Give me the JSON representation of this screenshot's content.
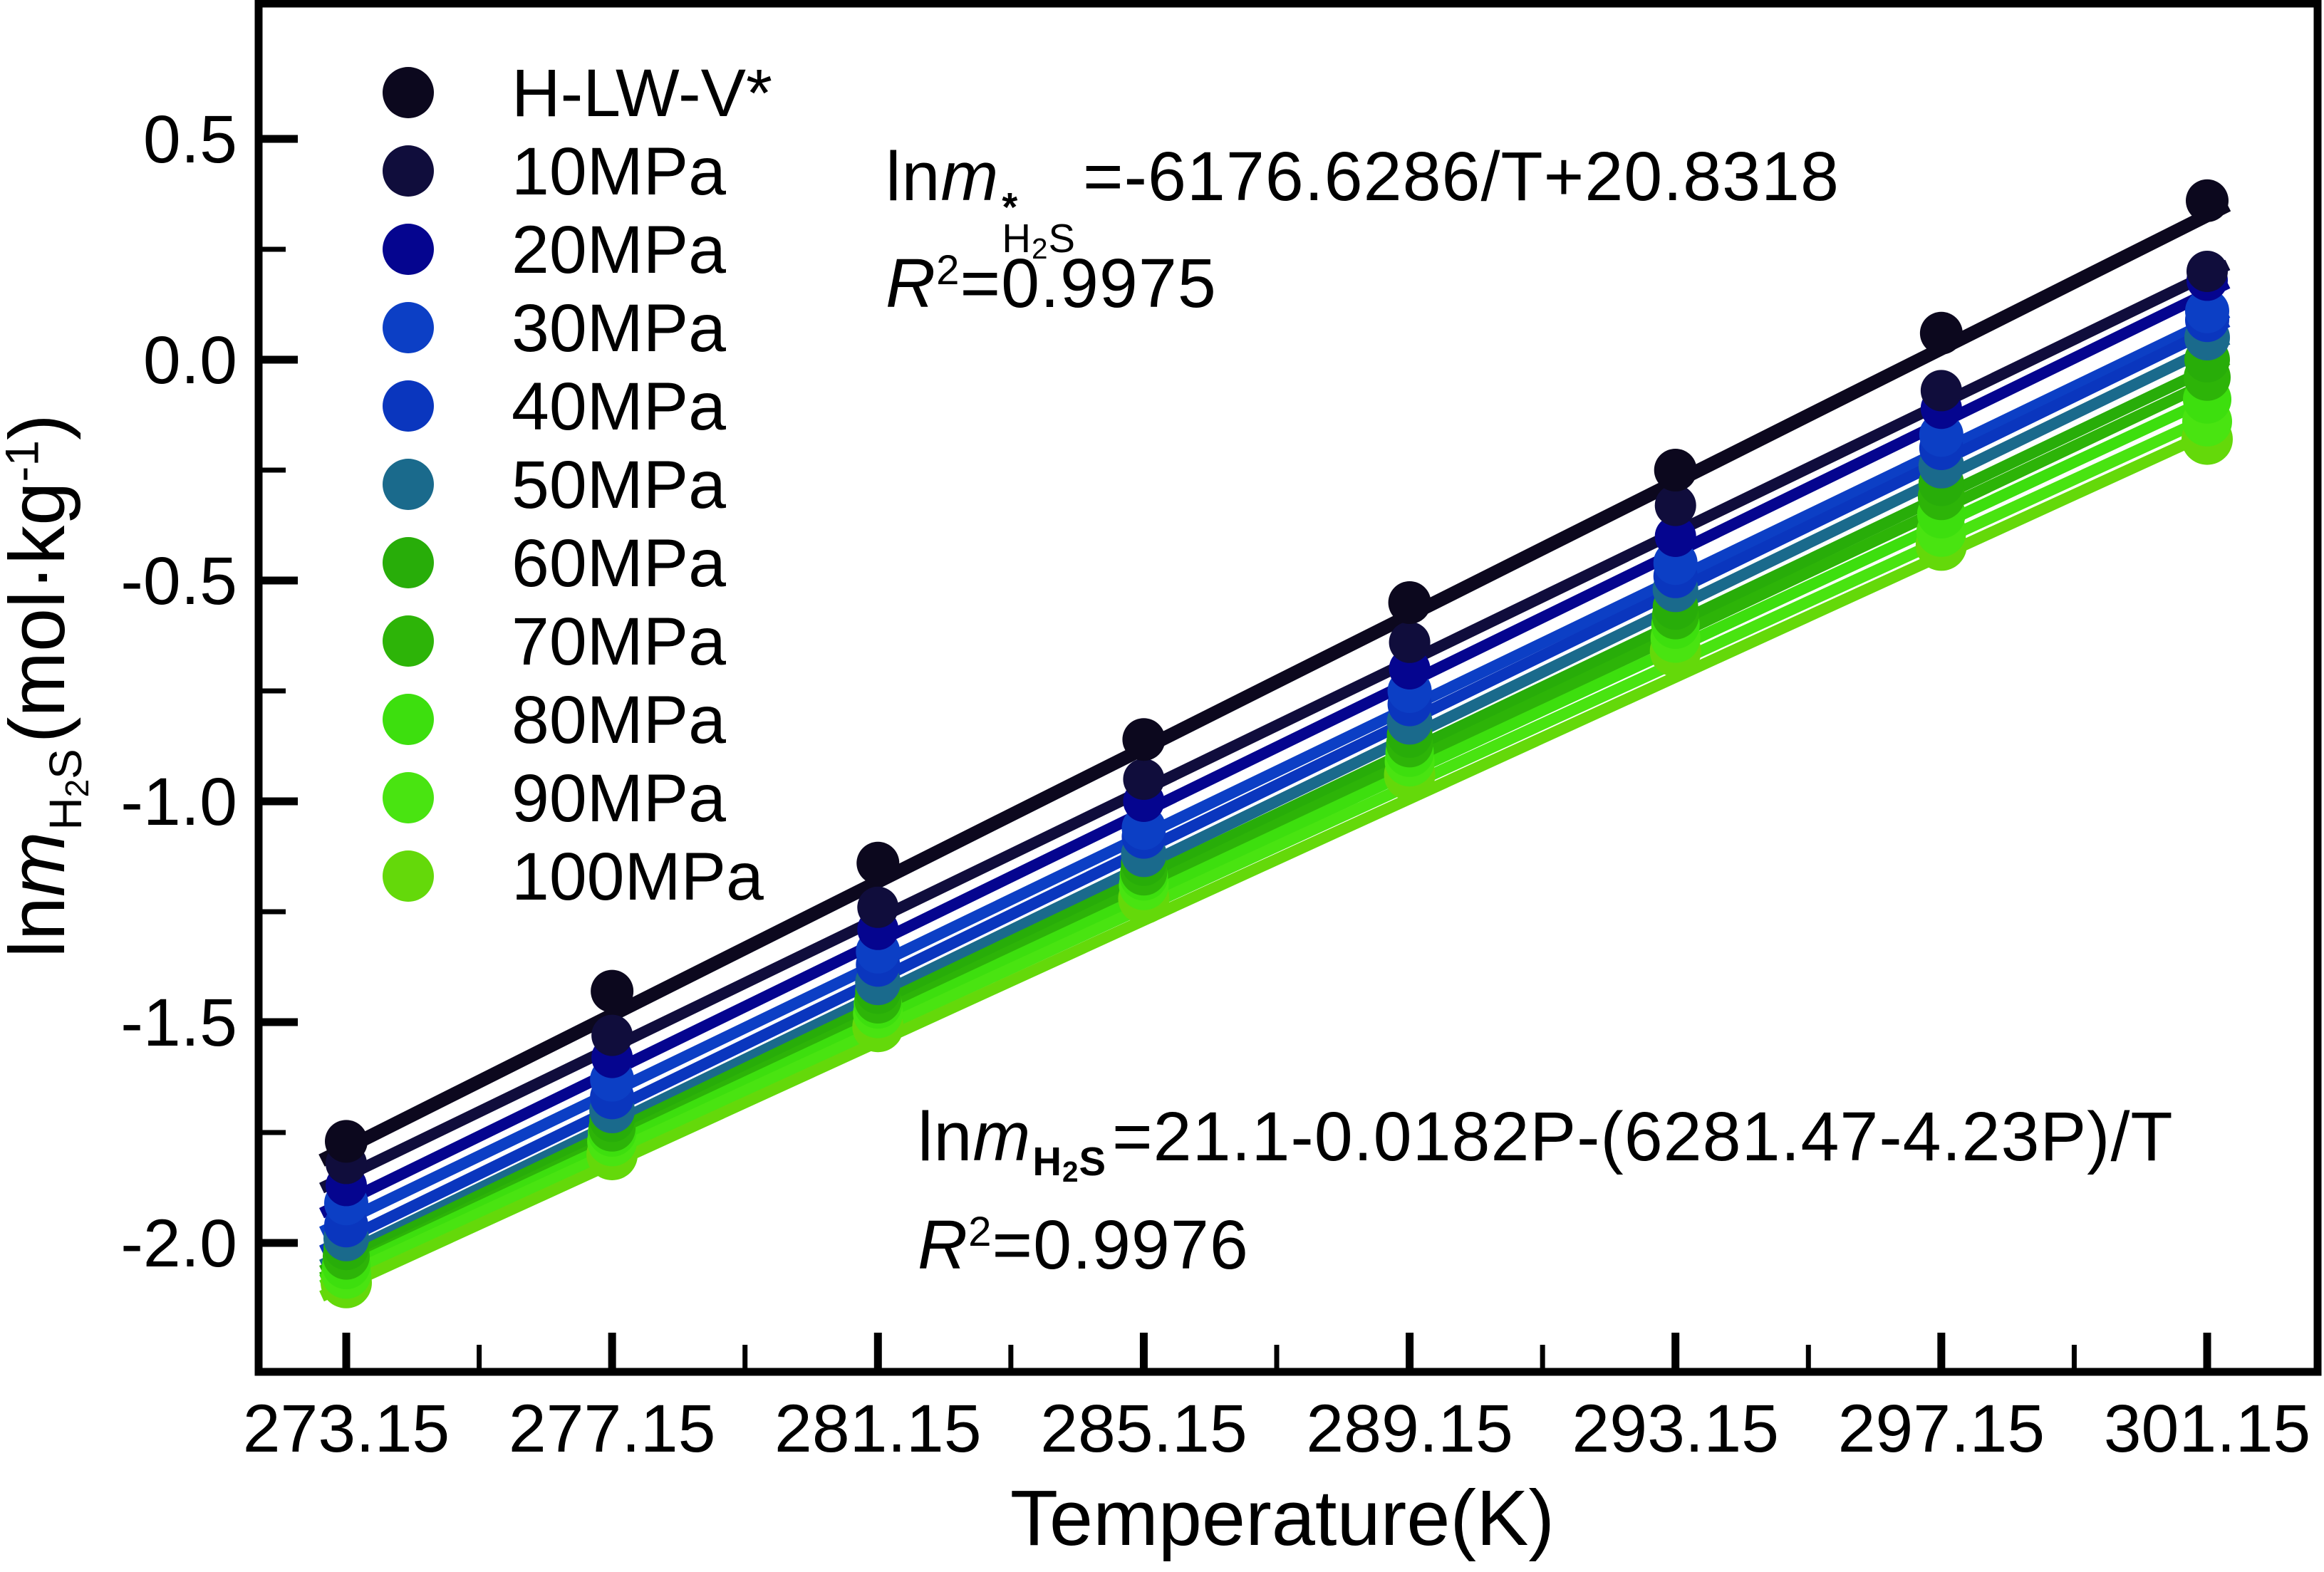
{
  "figure": {
    "background": "#ffffff",
    "text_color": "#000000"
  },
  "chart_data": {
    "type": "scatter",
    "title": "",
    "xlabel": "Temperature(K)",
    "ylabel": "lnm_H2S(mol·kg⁻¹)",
    "grid": false,
    "legend_position": "inside upper-left",
    "x_range": [
      271.83,
      302.81
    ],
    "y_range": [
      -2.29,
      0.81
    ],
    "x_tick_labels": [
      "273.15",
      "277.15",
      "281.15",
      "285.15",
      "289.15",
      "293.15",
      "297.15",
      "301.15"
    ],
    "x_minor_ticks": [
      275.15,
      279.15,
      283.15,
      287.15,
      291.15,
      295.15,
      299.15
    ],
    "y_ticks": [
      0.5,
      0.0,
      -0.5,
      -1.0,
      -1.5,
      -2.0
    ],
    "y_tick_labels": [
      "0.5",
      "0.0",
      "-0.5",
      "-1.0",
      "-1.5",
      "-2.0"
    ],
    "y_minor_ticks": [
      0.25,
      -0.25,
      -0.75,
      -1.25,
      -1.75
    ],
    "x": [
      273.15,
      277.15,
      281.15,
      285.15,
      289.15,
      293.15,
      297.15,
      301.15
    ],
    "series": [
      {
        "name": "H-LW-V*",
        "color": "#0c081e",
        "marker_radius": 30,
        "line_width": 19,
        "values": [
          -1.77,
          -1.43,
          -1.14,
          -0.86,
          -0.55,
          -0.25,
          0.06,
          0.36
        ]
      },
      {
        "name": "10MPa",
        "color": "#100d3c",
        "marker_radius": 29,
        "line_width": 16,
        "values": [
          -1.82,
          -1.53,
          -1.24,
          -0.95,
          -0.64,
          -0.33,
          -0.07,
          0.2
        ]
      },
      {
        "name": "20MPa",
        "color": "#05058f",
        "marker_radius": 29,
        "line_width": 16,
        "values": [
          -1.87,
          -1.58,
          -1.29,
          -1.0,
          -0.7,
          -0.4,
          -0.11,
          0.18
        ]
      },
      {
        "name": "30MPa",
        "color": "#0c3fc5",
        "marker_radius": 31,
        "line_width": 16,
        "values": [
          -1.91,
          -1.63,
          -1.34,
          -1.06,
          -0.75,
          -0.46,
          -0.17,
          0.11
        ]
      },
      {
        "name": "40MPa",
        "color": "#0a36be",
        "marker_radius": 31,
        "line_width": 16,
        "values": [
          -1.96,
          -1.67,
          -1.37,
          -1.08,
          -0.78,
          -0.49,
          -0.2,
          0.09
        ]
      },
      {
        "name": "50MPa",
        "color": "#1a6a8c",
        "marker_radius": 32,
        "line_width": 16,
        "values": [
          -1.99,
          -1.7,
          -1.41,
          -1.12,
          -0.82,
          -0.52,
          -0.24,
          0.05
        ]
      },
      {
        "name": "60MPa",
        "color": "#28ad09",
        "marker_radius": 32,
        "line_width": 16,
        "values": [
          -2.01,
          -1.72,
          -1.43,
          -1.14,
          -0.85,
          -0.56,
          -0.28,
          0.0
        ]
      },
      {
        "name": "70MPa",
        "color": "#2db408",
        "marker_radius": 33,
        "line_width": 16,
        "values": [
          -2.03,
          -1.74,
          -1.45,
          -1.16,
          -0.87,
          -0.58,
          -0.31,
          -0.04
        ]
      },
      {
        "name": "80MPa",
        "color": "#3ddf0e",
        "marker_radius": 34,
        "line_width": 16,
        "values": [
          -2.05,
          -1.75,
          -1.46,
          -1.17,
          -0.89,
          -0.6,
          -0.35,
          -0.09
        ]
      },
      {
        "name": "90MPa",
        "color": "#49e411",
        "marker_radius": 35,
        "line_width": 16,
        "values": [
          -2.07,
          -1.77,
          -1.48,
          -1.19,
          -0.91,
          -0.63,
          -0.39,
          -0.14
        ]
      },
      {
        "name": "100MPa",
        "color": "#64d90a",
        "marker_radius": 36,
        "line_width": 16,
        "values": [
          -2.09,
          -1.8,
          -1.51,
          -1.22,
          -0.94,
          -0.66,
          -0.42,
          -0.18
        ]
      }
    ],
    "fit_annotations": [
      {
        "equation": "lnm*_H2S = -6176.6286/T + 20.8318",
        "r_squared": 0.9975
      },
      {
        "equation": "lnm_H2S = 21.1 - 0.0182P - (6281.47 - 4.23P)/T",
        "r_squared": 0.9976
      }
    ]
  },
  "axes": {
    "x_title": "Temperature(K)",
    "y_title": {
      "prefix": "ln",
      "mvar": "m",
      "sub_h": "H",
      "sub_2": "2",
      "sub_s": "S",
      "unit_open": "(mol·kg",
      "unit_sup": "-1",
      "unit_close": ")"
    }
  },
  "annotations": {
    "eq_top": {
      "prefix": "ln",
      "mvar": "m",
      "sup": "*",
      "sub_h": "H",
      "sub_2": "2",
      "sub_s": "S",
      "rhs": "=-6176.6286/T+20.8318",
      "r_label": "R",
      "r_sup": "2",
      "r_rhs": "=0.9975"
    },
    "eq_bottom": {
      "prefix": "ln",
      "mvar": "m",
      "sub_h": "H",
      "sub_2": "2",
      "sub_s": "S",
      "rhs": "=21.1-0.0182P-(6281.47-4.23P)/T",
      "r_label": "R",
      "r_sup": "2",
      "r_rhs": "=0.9976"
    }
  }
}
